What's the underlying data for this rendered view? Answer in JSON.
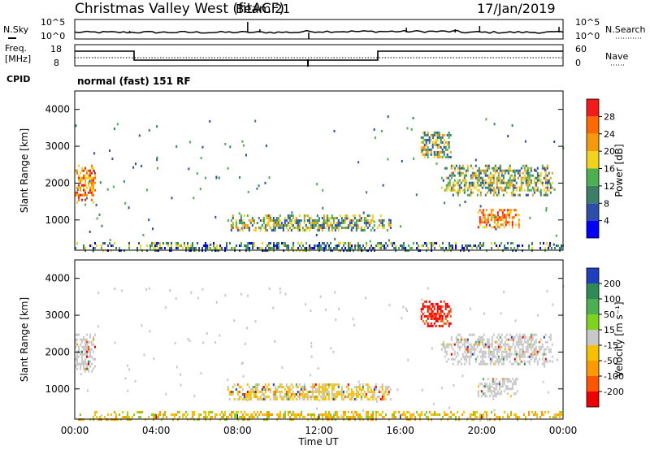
{
  "header": {
    "station": "Christmas Valley West (fitACF)",
    "beam": "Beam 21",
    "date": "17/Jan/2019"
  },
  "top_panel": {
    "left_label": "N.Sky",
    "right_label": "N.Search",
    "y_ticks": [
      "10^5",
      "10^0"
    ]
  },
  "freq_panel": {
    "left_label_line1": "Freq.",
    "left_label_line2": "[MHz]",
    "right_label": "Nave",
    "left_ticks": [
      "18",
      "8"
    ],
    "right_ticks": [
      "60",
      "0"
    ]
  },
  "cpid": {
    "label": "CPID",
    "mode": "normal (fast) 151 RF"
  },
  "chart_data": [
    {
      "type": "heatmap",
      "title": "",
      "ylabel": "Slant Range [km]",
      "xlabel": "",
      "ylim": [
        180,
        4500
      ],
      "xlim_hours": [
        0,
        24
      ],
      "y_ticks": [
        "1000",
        "2000",
        "3000",
        "4000"
      ],
      "colorbar": {
        "label": "Power [dB]",
        "ticks": [
          "4",
          "8",
          "12",
          "16",
          "20",
          "24",
          "28"
        ],
        "colors": [
          "#0000ff",
          "#2a4eaa",
          "#3b7f66",
          "#4caf50",
          "#f2d21b",
          "#f59a0c",
          "#ff6a00",
          "#f21a1a"
        ]
      },
      "regions": [
        {
          "t0": 0.0,
          "t1": 1.0,
          "r0": 1500,
          "r1": 2500,
          "level": "high"
        },
        {
          "t0": 7.5,
          "t1": 15.5,
          "r0": 700,
          "r1": 1150,
          "level": "mid"
        },
        {
          "t0": 17.0,
          "t1": 18.5,
          "r0": 2700,
          "r1": 3400,
          "level": "mid"
        },
        {
          "t0": 18.0,
          "t1": 23.5,
          "r0": 1700,
          "r1": 2500,
          "level": "mid"
        },
        {
          "t0": 19.8,
          "t1": 21.8,
          "r0": 800,
          "r1": 1300,
          "level": "high"
        },
        {
          "t0": 0.0,
          "t1": 24.0,
          "r0": 200,
          "r1": 400,
          "level": "low"
        }
      ]
    },
    {
      "type": "heatmap",
      "title": "",
      "ylabel": "Slant Range [km]",
      "xlabel": "Time UT",
      "ylim": [
        180,
        4500
      ],
      "xlim_hours": [
        0,
        24
      ],
      "y_ticks": [
        "1000",
        "2000",
        "3000",
        "4000"
      ],
      "x_ticks": [
        "00:00",
        "04:00",
        "08:00",
        "12:00",
        "16:00",
        "20:00",
        "00:00"
      ],
      "colorbar": {
        "label": "Velocity [m s⁻¹]",
        "ticks": [
          "200",
          "100",
          "50",
          "15",
          "-15",
          "-50",
          "-100",
          "-200"
        ],
        "colors": [
          "#1f3fbf",
          "#2e8b57",
          "#4caf50",
          "#7ed321",
          "#c8c8c8",
          "#f7c000",
          "#ff9900",
          "#ff5500",
          "#ee0000"
        ]
      },
      "regions": [
        {
          "t0": 0.0,
          "t1": 1.0,
          "r0": 1500,
          "r1": 2500,
          "level": "zero"
        },
        {
          "t0": 7.5,
          "t1": 15.5,
          "r0": 700,
          "r1": 1150,
          "level": "mixed"
        },
        {
          "t0": 17.0,
          "t1": 18.5,
          "r0": 2700,
          "r1": 3400,
          "level": "negative"
        },
        {
          "t0": 18.0,
          "t1": 23.5,
          "r0": 1700,
          "r1": 2500,
          "level": "zero"
        },
        {
          "t0": 19.8,
          "t1": 21.8,
          "r0": 800,
          "r1": 1300,
          "level": "zero"
        },
        {
          "t0": 0.0,
          "t1": 24.0,
          "r0": 200,
          "r1": 400,
          "level": "negative-low"
        }
      ]
    }
  ]
}
